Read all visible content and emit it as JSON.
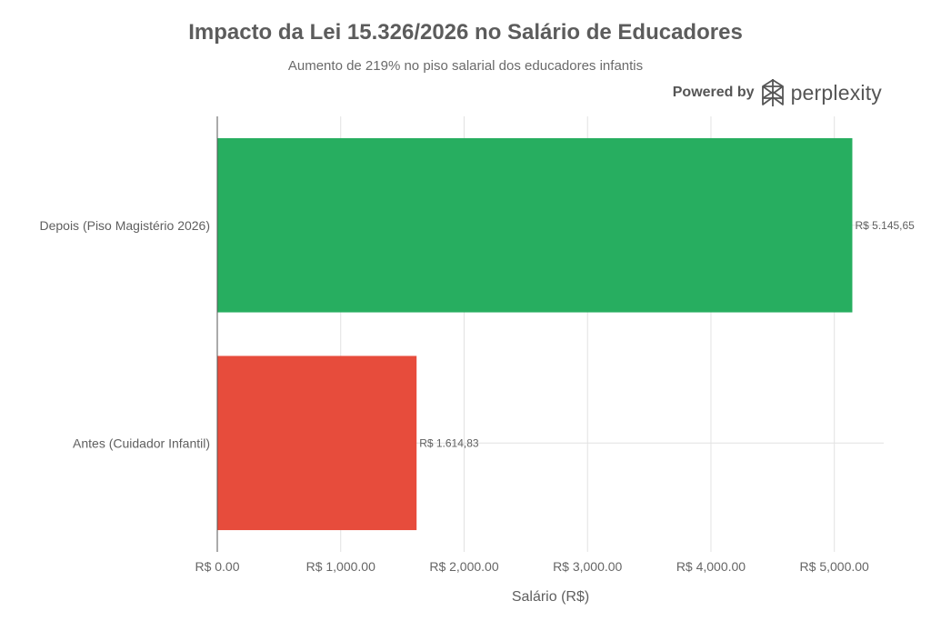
{
  "header": {
    "title": "Impacto da Lei 15.326/2026 no Salário de Educadores",
    "subtitle": "Aumento de 219% no piso salarial dos educadores infantis"
  },
  "brand": {
    "powered_by": "Powered by",
    "name": "perplexity",
    "logo_icon": "perplexity-logo-icon"
  },
  "chart_data": {
    "type": "bar",
    "orientation": "horizontal",
    "categories": [
      "Depois (Piso Magistério 2026)",
      "Antes (Cuidador Infantil)"
    ],
    "values": [
      5145.65,
      1614.83
    ],
    "value_labels": [
      "R$ 5.145,65",
      "R$ 1.614,83"
    ],
    "colors": [
      "#27ae60",
      "#e74c3c"
    ],
    "xlabel": "Salário (R$)",
    "xlim": [
      0,
      5400
    ],
    "xticks": [
      0,
      1000,
      2000,
      3000,
      4000,
      5000
    ],
    "xtick_labels": [
      "R$ 0.00",
      "R$ 1,000.00",
      "R$ 2,000.00",
      "R$ 3,000.00",
      "R$ 4,000.00",
      "R$ 5,000.00"
    ],
    "grid": true,
    "legend": false
  }
}
